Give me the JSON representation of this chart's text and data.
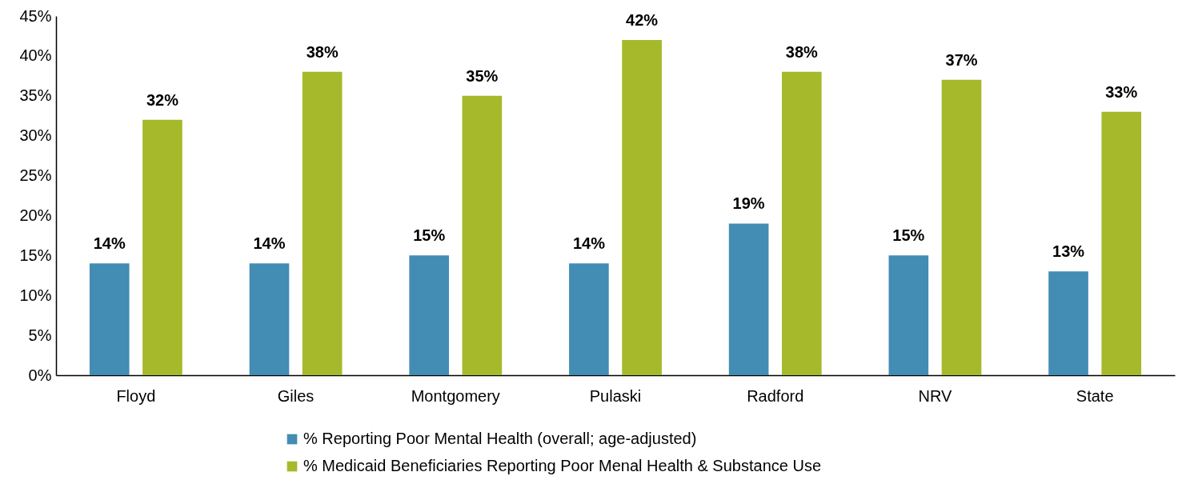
{
  "chart_data": {
    "type": "bar",
    "categories": [
      "Floyd",
      "Giles",
      "Montgomery",
      "Pulaski",
      "Radford",
      "NRV",
      "State"
    ],
    "series": [
      {
        "name": "% Reporting Poor Mental Health (overall; age-adjusted)",
        "color": "#438cb4",
        "values": [
          14,
          14,
          15,
          14,
          19,
          15,
          13
        ],
        "value_labels": [
          "14%",
          "14%",
          "15%",
          "14%",
          "19%",
          "15%",
          "13%"
        ]
      },
      {
        "name": "% Medicaid Beneficiaries Reporting Poor Menal Health & Substance Use",
        "color": "#a6b92b",
        "values": [
          32,
          38,
          35,
          42,
          38,
          37,
          33
        ],
        "value_labels": [
          "32%",
          "38%",
          "35%",
          "42%",
          "38%",
          "37%",
          "33%"
        ]
      }
    ],
    "ylim": [
      0,
      45
    ],
    "yticks": [
      {
        "value": 0,
        "label": "0%"
      },
      {
        "value": 5,
        "label": "5%"
      },
      {
        "value": 10,
        "label": "10%"
      },
      {
        "value": 15,
        "label": "15%"
      },
      {
        "value": 20,
        "label": "20%"
      },
      {
        "value": 25,
        "label": "25%"
      },
      {
        "value": 30,
        "label": "30%"
      },
      {
        "value": 35,
        "label": "35%"
      },
      {
        "value": 40,
        "label": "40%"
      },
      {
        "value": 45,
        "label": "45%"
      }
    ],
    "legend": "bottom"
  }
}
